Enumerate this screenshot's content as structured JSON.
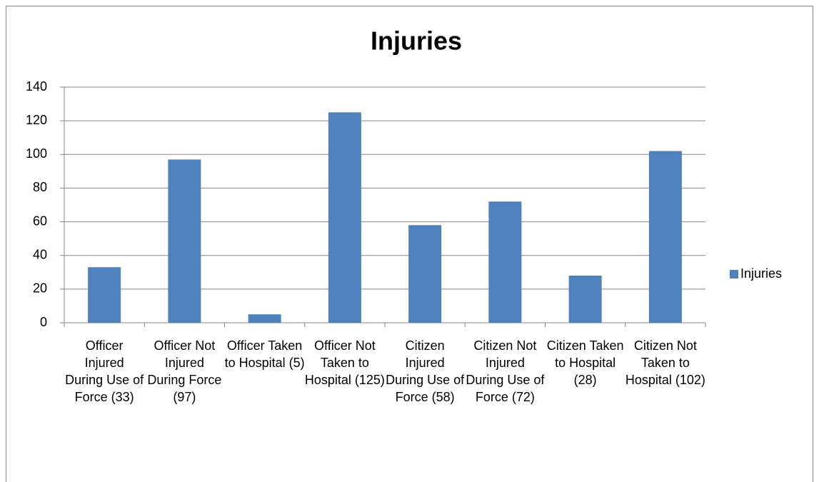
{
  "chart_data": {
    "type": "bar",
    "title": "Injuries",
    "categories": [
      "Officer Injured During Use of Force (33)",
      "Officer Not Injured During Force (97)",
      "Officer Taken to Hospital (5)",
      "Officer Not Taken to Hospital (125)",
      "Citizen Injured During Use of Force (58)",
      "Citizen Not Injured During Use of Force (72)",
      "Citizen Taken to Hospital (28)",
      "Citizen Not Taken to Hospital (102)"
    ],
    "series": [
      {
        "name": "Injuries",
        "color": "#4f81bd",
        "values": [
          33,
          97,
          5,
          125,
          58,
          72,
          28,
          102
        ]
      }
    ],
    "ylim": [
      0,
      140
    ],
    "yticks": [
      0,
      20,
      40,
      60,
      80,
      100,
      120,
      140
    ],
    "grid": true,
    "legend": "right"
  }
}
